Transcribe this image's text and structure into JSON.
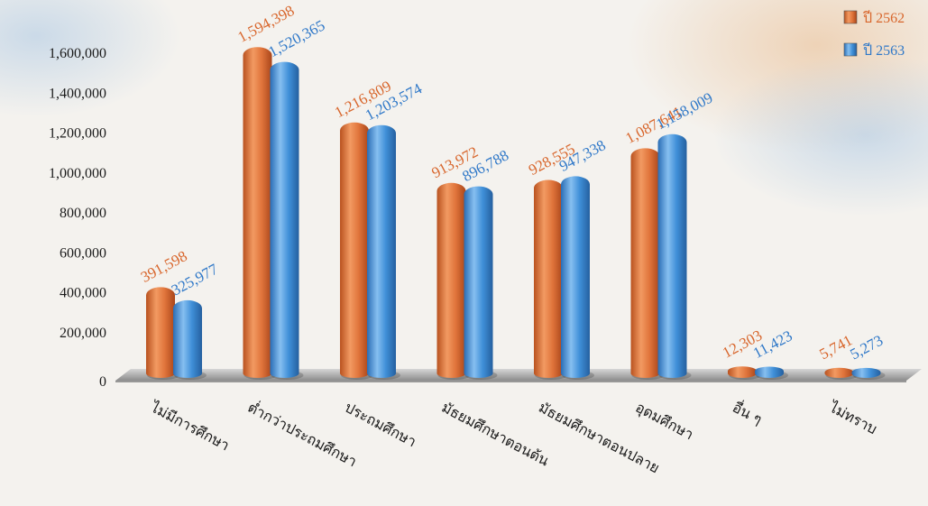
{
  "chart_data": {
    "type": "bar",
    "categories": [
      "ไม่มีการศึกษา",
      "ต่ำกว่าประถมศึกษา",
      "ประถมศึกษา",
      "มัธยมศึกษาตอนต้น",
      "มัธยมศึกษาตอนปลาย",
      "อุดมศึกษา",
      "อื่น ๆ",
      "ไม่ทราบ"
    ],
    "series": [
      {
        "name": "ปี 2562",
        "color": "#e0743b",
        "label_color": "#d8662c",
        "values": [
          391598,
          1594398,
          1216809,
          913972,
          928555,
          1087641,
          12303,
          5741
        ],
        "labels": [
          "391,598",
          "1,594,398",
          "1,216,809",
          "913,972",
          "928,555",
          "1,087,641",
          "12,303",
          "5,741"
        ]
      },
      {
        "name": "ปี 2563",
        "color": "#3f8fd8",
        "label_color": "#2f78c8",
        "values": [
          325977,
          1520365,
          1203574,
          896788,
          947338,
          1158009,
          11423,
          5273
        ],
        "labels": [
          "325,977",
          "1,520,365",
          "1,203,574",
          "896,788",
          "947,338",
          "1,158,009",
          "11,423",
          "5,273"
        ]
      }
    ],
    "yticks": [
      0,
      200000,
      400000,
      600000,
      800000,
      1000000,
      1200000,
      1400000,
      1600000
    ],
    "ytick_labels": [
      "0",
      "200,000",
      "400,000",
      "600,000",
      "800,000",
      "1,000,000",
      "1,200,000",
      "1,400,000",
      "1,600,000"
    ],
    "ylim": [
      0,
      1600000
    ],
    "title": "",
    "xlabel": "",
    "ylabel": "",
    "grid": false,
    "legend_position": "top-right"
  }
}
